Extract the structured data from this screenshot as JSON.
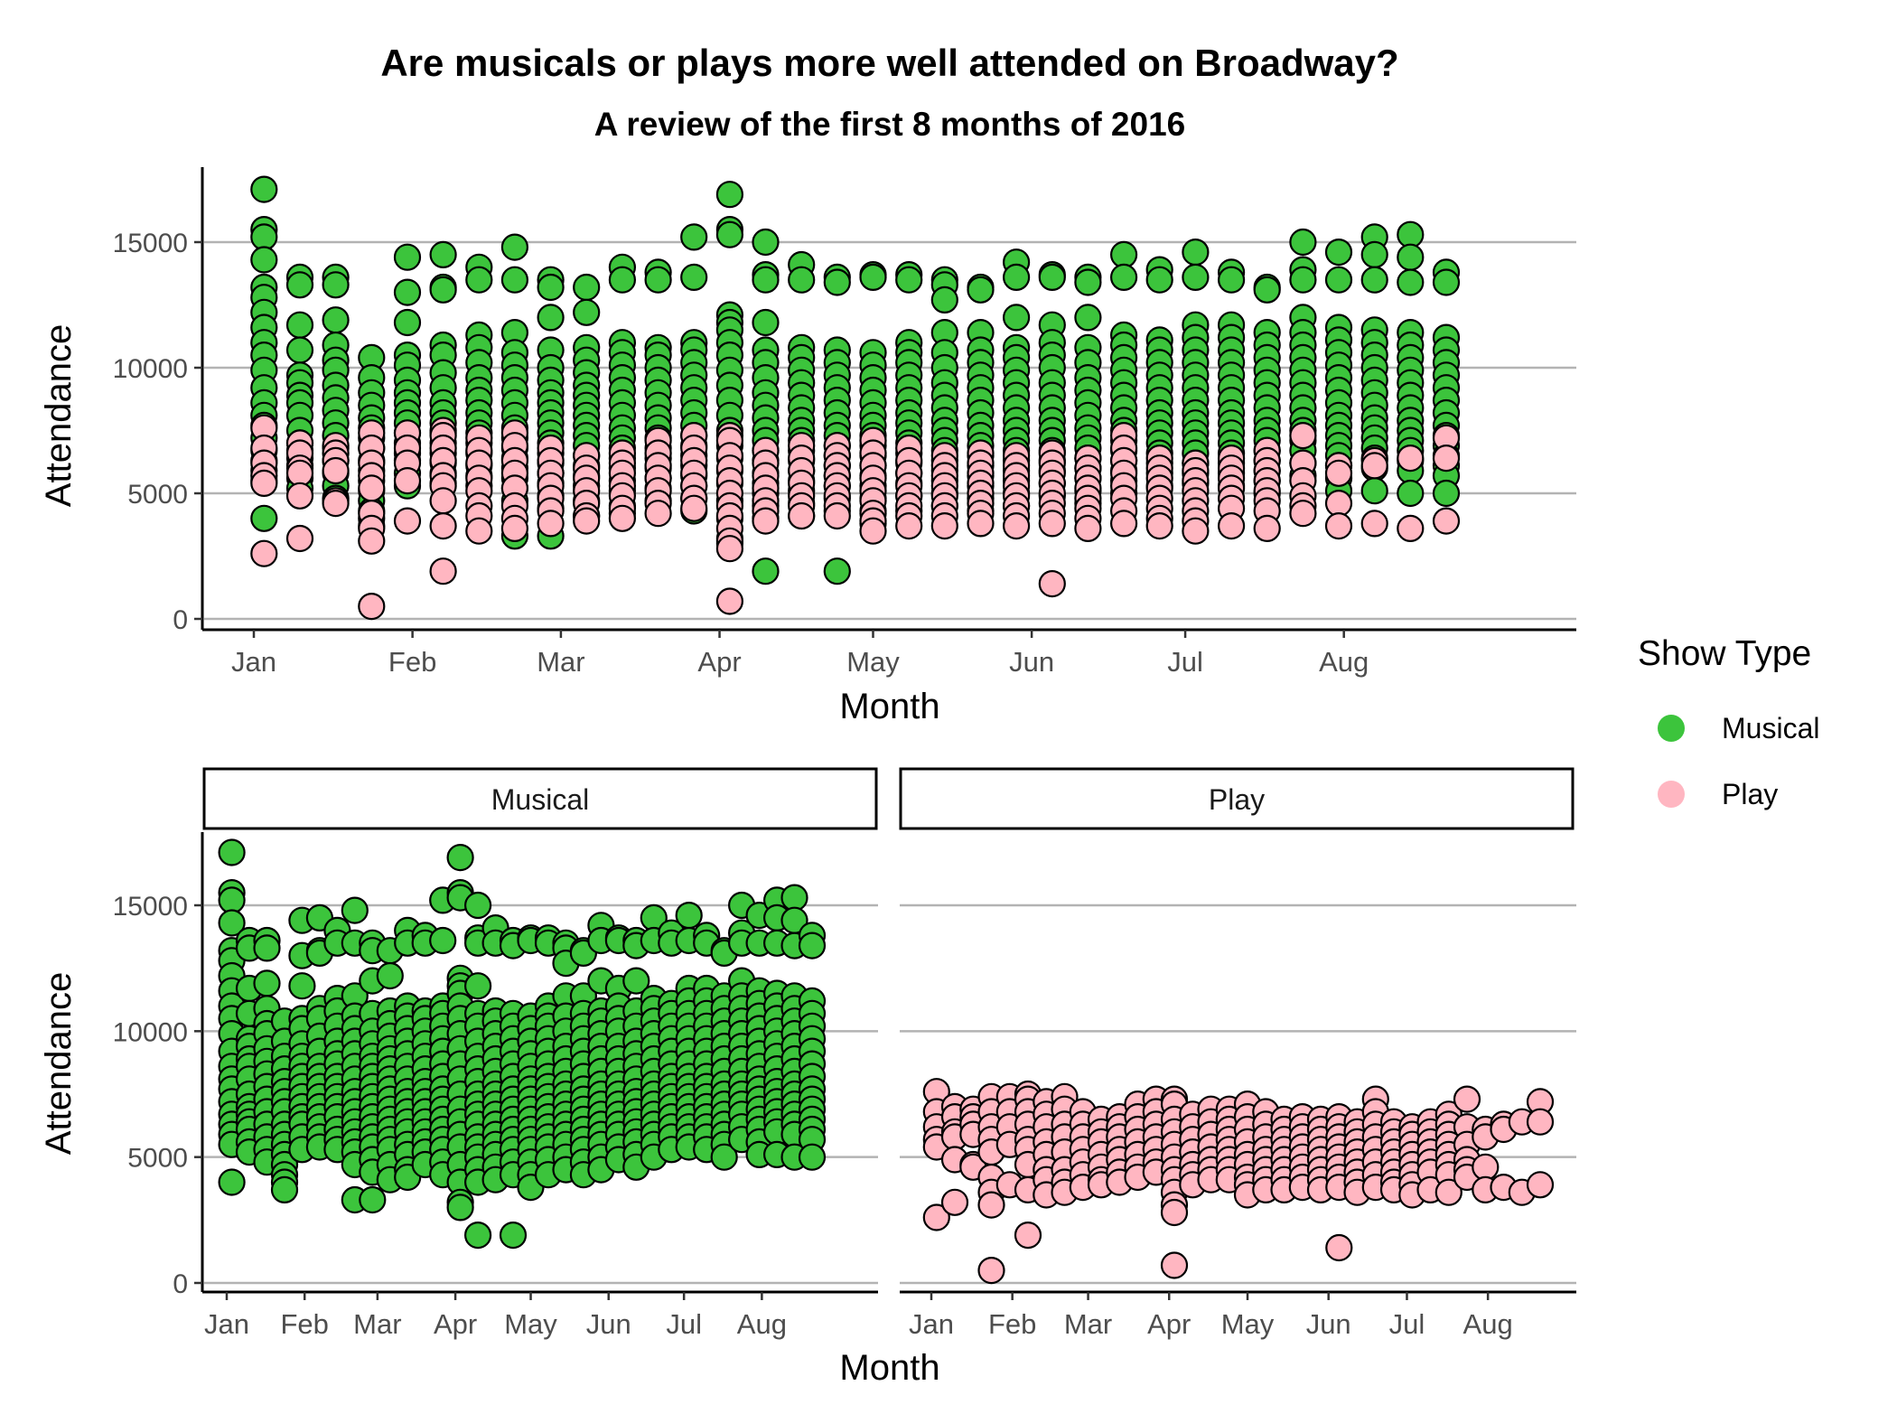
{
  "chart_data": {
    "type": "scatter",
    "title": "Are musicals or plays more well attended on Broadway?",
    "subtitle": "A review of the first 8 months of 2016",
    "xlabel": "Month",
    "ylabel": "Attendance",
    "x_ticks": [
      "Jan",
      "Feb",
      "Mar",
      "Apr",
      "May",
      "Jun",
      "Jul",
      "Aug"
    ],
    "y_ticks": [
      0,
      5000,
      10000,
      15000
    ],
    "ylim": [
      0,
      17500
    ],
    "xlim": [
      "2016-01-01",
      "2016-08-21"
    ],
    "grid": "horizontal major lines",
    "legend": {
      "title": "Show Type",
      "position": "right",
      "entries": [
        "Musical",
        "Play"
      ]
    },
    "facets": [
      "Musical",
      "Play"
    ],
    "colors": {
      "Musical": "#3cc43c",
      "Play": "#ffb6c1",
      "outline": "#000000",
      "grid": "#b3b3b3"
    },
    "week_dates": [
      "2016-01-03",
      "2016-01-10",
      "2016-01-17",
      "2016-01-24",
      "2016-01-31",
      "2016-02-07",
      "2016-02-14",
      "2016-02-21",
      "2016-02-28",
      "2016-03-06",
      "2016-03-13",
      "2016-03-20",
      "2016-03-27",
      "2016-04-03",
      "2016-04-10",
      "2016-04-17",
      "2016-04-24",
      "2016-05-01",
      "2016-05-08",
      "2016-05-15",
      "2016-05-22",
      "2016-05-29",
      "2016-06-05",
      "2016-06-12",
      "2016-06-19",
      "2016-06-26",
      "2016-07-03",
      "2016-07-10",
      "2016-07-17",
      "2016-07-24",
      "2016-07-31",
      "2016-08-07",
      "2016-08-14",
      "2016-08-21"
    ],
    "series": [
      {
        "name": "Musical",
        "weeks": [
          [
            17100,
            15500,
            15200,
            14300,
            13200,
            12800,
            12200,
            11600,
            11000,
            10500,
            9900,
            9200,
            8600,
            8100,
            7700,
            7200,
            6700,
            6300,
            5900,
            5500,
            4000
          ],
          [
            13600,
            13300,
            11700,
            10700,
            9700,
            9400,
            8900,
            8600,
            8100,
            7500,
            7000,
            6700,
            6400,
            6100,
            5600,
            5200
          ],
          [
            13600,
            13300,
            11900,
            10900,
            10300,
            9900,
            9300,
            8800,
            8300,
            7800,
            7300,
            6800,
            6300,
            5800,
            5300,
            4800
          ],
          [
            10400,
            9600,
            9000,
            8500,
            8000,
            7600,
            7200,
            6800,
            6300,
            5900,
            5500,
            5100,
            4700,
            4300,
            4000,
            3700
          ],
          [
            14400,
            13000,
            11800,
            10500,
            10100,
            9500,
            9000,
            8600,
            8200,
            7800,
            7400,
            7000,
            6600,
            6300,
            5800,
            5300
          ],
          [
            14500,
            13200,
            13100,
            10900,
            10500,
            9800,
            9200,
            8600,
            8200,
            7800,
            7400,
            7000,
            6600,
            6200,
            5800,
            5400
          ],
          [
            14000,
            13500,
            11300,
            10800,
            10200,
            9600,
            9100,
            8700,
            8200,
            7800,
            7400,
            7000,
            6600,
            6100,
            5700,
            5300
          ],
          [
            14800,
            13500,
            11400,
            10600,
            10100,
            9600,
            9100,
            8600,
            8100,
            7600,
            7200,
            6800,
            6400,
            6000,
            5600,
            5200,
            4700,
            3300
          ],
          [
            13500,
            13200,
            12000,
            10700,
            10000,
            9500,
            9000,
            8600,
            8200,
            7800,
            7400,
            7000,
            6600,
            6200,
            5800,
            5400,
            4900,
            4400,
            3300
          ],
          [
            13200,
            12200,
            10800,
            10300,
            9800,
            9300,
            8900,
            8500,
            8100,
            7700,
            7300,
            6900,
            6500,
            6100,
            5700,
            5300,
            4700,
            4100
          ],
          [
            14000,
            13500,
            11000,
            10600,
            10100,
            9600,
            9100,
            8600,
            8100,
            7600,
            7200,
            6800,
            6400,
            6000,
            5500,
            5100,
            4500,
            4200
          ],
          [
            13800,
            13500,
            10800,
            10500,
            10000,
            9500,
            9000,
            8500,
            8000,
            7600,
            7200,
            6800,
            6400,
            6000,
            5600,
            5200,
            4700
          ],
          [
            15200,
            13600,
            11000,
            10700,
            10200,
            9700,
            9200,
            8700,
            8200,
            7700,
            7300,
            6900,
            6500,
            6100,
            5700,
            5300,
            4800,
            4300
          ],
          [
            16900,
            15500,
            15300,
            12100,
            11800,
            11500,
            11000,
            10500,
            9900,
            9300,
            8700,
            8100,
            7500,
            6900,
            6400,
            5900,
            5400,
            4700,
            4000,
            3200,
            3000
          ],
          [
            15000,
            13700,
            13500,
            11800,
            10700,
            10200,
            9600,
            9000,
            8500,
            8000,
            7500,
            7100,
            6700,
            6300,
            5800,
            5400,
            5000,
            4500,
            4000,
            1900
          ],
          [
            14100,
            13500,
            10800,
            10400,
            9900,
            9400,
            8900,
            8400,
            7900,
            7500,
            7100,
            6700,
            6300,
            5900,
            5500,
            5100,
            4600,
            4100
          ],
          [
            13600,
            13400,
            10700,
            10200,
            9700,
            9200,
            8700,
            8200,
            7700,
            7300,
            6900,
            6500,
            6100,
            5700,
            5300,
            4800,
            4300,
            1900
          ],
          [
            13700,
            13600,
            10600,
            10100,
            9600,
            9100,
            8600,
            8100,
            7700,
            7300,
            6900,
            6500,
            6100,
            5700,
            5300,
            4800,
            4300,
            3800
          ],
          [
            13700,
            13500,
            11000,
            10600,
            10200,
            9700,
            9200,
            8700,
            8200,
            7800,
            7400,
            7000,
            6600,
            6200,
            5800,
            5400,
            4900,
            4300
          ],
          [
            13500,
            13300,
            12700,
            11400,
            10600,
            10000,
            9400,
            8900,
            8400,
            7900,
            7500,
            7100,
            6700,
            6300,
            5900,
            5500,
            5000,
            4500
          ],
          [
            13200,
            13100,
            11400,
            10700,
            10200,
            9700,
            9200,
            8700,
            8200,
            7700,
            7300,
            6900,
            6500,
            6100,
            5700,
            5300,
            4800,
            4300
          ],
          [
            14200,
            13600,
            12000,
            10800,
            10400,
            9900,
            9400,
            8900,
            8400,
            7900,
            7500,
            7100,
            6700,
            6300,
            5900,
            5500,
            5000,
            4500
          ],
          [
            13700,
            13600,
            11700,
            11000,
            10500,
            10000,
            9400,
            8900,
            8400,
            7900,
            7500,
            7100,
            6700,
            6300,
            5900,
            5400,
            4900
          ],
          [
            13600,
            13400,
            12000,
            10800,
            10200,
            9600,
            9100,
            8600,
            8100,
            7600,
            7200,
            6800,
            6400,
            6000,
            5600,
            5100,
            4600
          ],
          [
            14500,
            13600,
            11300,
            10900,
            10400,
            9900,
            9400,
            8900,
            8400,
            7900,
            7500,
            7100,
            6700,
            6300,
            5900,
            5500,
            5000
          ],
          [
            13900,
            13500,
            11100,
            10700,
            10200,
            9700,
            9200,
            8700,
            8200,
            7800,
            7400,
            7000,
            6600,
            6200,
            5800,
            5300
          ],
          [
            14600,
            13600,
            11700,
            11200,
            10700,
            10200,
            9700,
            9200,
            8700,
            8200,
            7800,
            7400,
            7000,
            6600,
            6200,
            5800,
            5400
          ],
          [
            13800,
            13500,
            11700,
            11200,
            10700,
            10200,
            9700,
            9200,
            8700,
            8200,
            7800,
            7400,
            7000,
            6600,
            6200,
            5800,
            5300
          ],
          [
            13200,
            13100,
            11400,
            10900,
            10400,
            9900,
            9400,
            8900,
            8400,
            7900,
            7500,
            7100,
            6700,
            6300,
            5900,
            5500,
            5000
          ],
          [
            15000,
            13900,
            13500,
            12000,
            11400,
            10900,
            10400,
            9900,
            9400,
            8900,
            8400,
            7900,
            7500,
            7100,
            6700,
            6200,
            5700
          ],
          [
            14600,
            13500,
            11600,
            11100,
            10600,
            10100,
            9600,
            9100,
            8600,
            8100,
            7700,
            7300,
            6900,
            6500,
            6100,
            5600,
            5100
          ],
          [
            15200,
            14500,
            13500,
            11500,
            11000,
            10500,
            10000,
            9500,
            9000,
            8500,
            8000,
            7600,
            7200,
            6800,
            6400,
            6000,
            5100
          ],
          [
            15300,
            14400,
            13400,
            11400,
            10900,
            10400,
            9900,
            9400,
            8900,
            8400,
            7900,
            7500,
            7100,
            6700,
            6300,
            5900,
            5000
          ],
          [
            13800,
            13400,
            11200,
            10700,
            10200,
            9700,
            9200,
            8700,
            8200,
            7700,
            7300,
            6900,
            6500,
            6100,
            5700,
            5000
          ]
        ]
      },
      {
        "name": "Play",
        "weeks": [
          [
            7600,
            6800,
            6200,
            5700,
            5400,
            2600
          ],
          [
            7000,
            6600,
            6000,
            5800,
            4900,
            3200
          ],
          [
            6900,
            6600,
            6300,
            5900,
            4700,
            4600
          ],
          [
            7400,
            6800,
            6200,
            5700,
            5200,
            4200,
            3600,
            3100,
            500
          ],
          [
            7400,
            6800,
            6200,
            5500,
            3900
          ],
          [
            7500,
            7300,
            6800,
            6300,
            5700,
            5300,
            4700,
            3700,
            1900
          ],
          [
            7200,
            6700,
            6200,
            5600,
            5100,
            4500,
            4100,
            3500
          ],
          [
            7400,
            6900,
            6300,
            5800,
            5200,
            4500,
            4000,
            3600
          ],
          [
            6800,
            6300,
            5800,
            5300,
            4800,
            4300,
            3800
          ],
          [
            6500,
            6000,
            5600,
            5100,
            4600,
            4100,
            3900
          ],
          [
            6600,
            6200,
            5800,
            5300,
            4900,
            4400,
            4000
          ],
          [
            7100,
            6600,
            6100,
            5600,
            5100,
            4600,
            4200
          ],
          [
            7300,
            6800,
            6300,
            5800,
            5300,
            4800,
            4400
          ],
          [
            7300,
            7100,
            6500,
            6000,
            5500,
            5000,
            4500,
            4100,
            3600,
            3100,
            2800,
            700
          ],
          [
            6700,
            6200,
            5700,
            5200,
            4700,
            4300,
            3900
          ],
          [
            6900,
            6400,
            5900,
            5400,
            4900,
            4500,
            4100
          ],
          [
            6900,
            6500,
            6100,
            5700,
            5300,
            4900,
            4500,
            4100
          ],
          [
            7100,
            6600,
            6100,
            5600,
            5100,
            4700,
            4200,
            3900,
            3500
          ],
          [
            6800,
            6300,
            5800,
            5300,
            4900,
            4500,
            4100,
            3700
          ],
          [
            6500,
            6100,
            5700,
            5300,
            4900,
            4500,
            4100,
            3700
          ],
          [
            6600,
            6200,
            5800,
            5400,
            5000,
            4600,
            4200,
            3800
          ],
          [
            6500,
            6100,
            5700,
            5300,
            4900,
            4500,
            4100,
            3700
          ],
          [
            6600,
            6200,
            5800,
            5400,
            5000,
            4600,
            4200,
            3800,
            1400
          ],
          [
            6400,
            6000,
            5600,
            5200,
            4800,
            4400,
            4000,
            3600
          ],
          [
            7300,
            6800,
            6300,
            5800,
            5300,
            4800,
            4300,
            3800
          ],
          [
            6400,
            6000,
            5600,
            5200,
            4800,
            4400,
            4000,
            3700
          ],
          [
            6200,
            5900,
            5500,
            5100,
            4700,
            4300,
            3900,
            3500
          ],
          [
            6400,
            6000,
            5600,
            5200,
            4800,
            4400,
            3700
          ],
          [
            6700,
            6300,
            5900,
            5500,
            5100,
            4700,
            4300,
            3600
          ],
          [
            7300,
            6200,
            5500,
            4900,
            4500,
            4200
          ],
          [
            6100,
            5800,
            4600,
            3700
          ],
          [
            6300,
            6100,
            3800
          ],
          [
            6400,
            3600
          ],
          [
            7200,
            6400,
            3900
          ]
        ]
      }
    ]
  }
}
